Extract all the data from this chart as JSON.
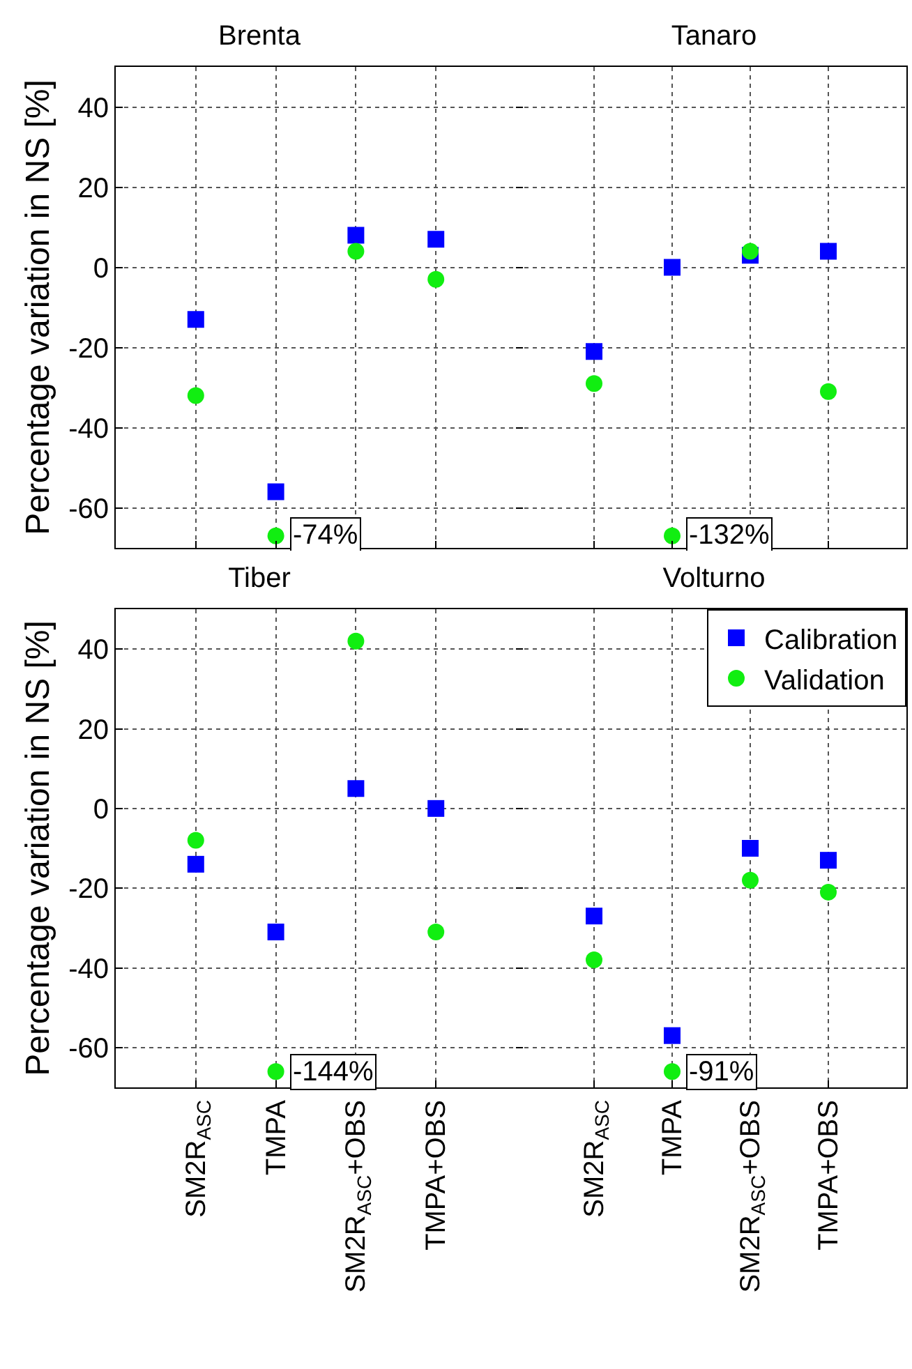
{
  "chart_data": [
    {
      "type": "scatter",
      "title": "Brenta",
      "ylabel": "Percentage variation in NS [%]",
      "categories": [
        "SM2R$_{ASC}$",
        "TMPA",
        "SM2R$_{ASC}$+OBS",
        "TMPA+OBS"
      ],
      "ylim": [
        -70,
        50
      ],
      "yticks": [
        -60,
        -40,
        -20,
        0,
        20,
        40
      ],
      "grid": true,
      "legend": false,
      "tick_labels": "y",
      "series": [
        {
          "color": "#0000ff",
          "marker": "square",
          "values": [
            -13,
            -56,
            8,
            7
          ]
        },
        {
          "color": "#11ee11",
          "marker": "circle",
          "values": [
            -32,
            -67,
            4,
            -3
          ]
        }
      ],
      "annotations": [
        {
          "text": "-74%",
          "x": "TMPA",
          "y": -67
        }
      ]
    },
    {
      "type": "scatter",
      "title": "Tanaro",
      "categories": [
        "SM2R$_{ASC}$",
        "TMPA",
        "SM2R$_{ASC}$+OBS",
        "TMPA+OBS"
      ],
      "ylim": [
        -70,
        50
      ],
      "yticks": [
        -60,
        -40,
        -20,
        0,
        20,
        40
      ],
      "grid": true,
      "legend": false,
      "tick_labels": false,
      "series": [
        {
          "color": "#0000ff",
          "marker": "square",
          "values": [
            -21,
            0,
            3,
            4
          ]
        },
        {
          "color": "#11ee11",
          "marker": "circle",
          "values": [
            -29,
            -67,
            4,
            -31
          ]
        }
      ],
      "annotations": [
        {
          "text": "-132%",
          "x": "TMPA",
          "y": -67
        }
      ]
    },
    {
      "type": "scatter",
      "title": "Tiber",
      "ylabel": "Percentage variation in NS [%]",
      "categories": [
        "SM2R$_{ASC}$",
        "TMPA",
        "SM2R$_{ASC}$+OBS",
        "TMPA+OBS"
      ],
      "ylim": [
        -70,
        50
      ],
      "yticks": [
        -60,
        -40,
        -20,
        0,
        20,
        40
      ],
      "grid": true,
      "legend": false,
      "series": [
        {
          "color": "#0000ff",
          "marker": "square",
          "values": [
            -14,
            -31,
            5,
            0
          ]
        },
        {
          "color": "#11ee11",
          "marker": "circle",
          "values": [
            -8,
            -66,
            42,
            -31
          ]
        }
      ],
      "annotations": [
        {
          "text": "-144%",
          "x": "TMPA",
          "y": -66
        }
      ]
    },
    {
      "type": "scatter",
      "title": "Volturno",
      "categories": [
        "SM2R$_{ASC}$",
        "TMPA",
        "SM2R$_{ASC}$+OBS",
        "TMPA+OBS"
      ],
      "ylim": [
        -70,
        50
      ],
      "yticks": [
        -60,
        -40,
        -20,
        0,
        20,
        40
      ],
      "grid": true,
      "legend": "top right",
      "tick_labels": "x",
      "series": [
        {
          "name": "Calibration",
          "color": "#0000ff",
          "marker": "square",
          "values": [
            -27,
            -57,
            -10,
            -13
          ]
        },
        {
          "name": "Validation",
          "color": "#11ee11",
          "marker": "circle",
          "values": [
            -38,
            -66,
            -18,
            -21
          ]
        }
      ],
      "annotations": [
        {
          "text": "-91%",
          "x": "TMPA",
          "y": -66
        }
      ]
    }
  ]
}
